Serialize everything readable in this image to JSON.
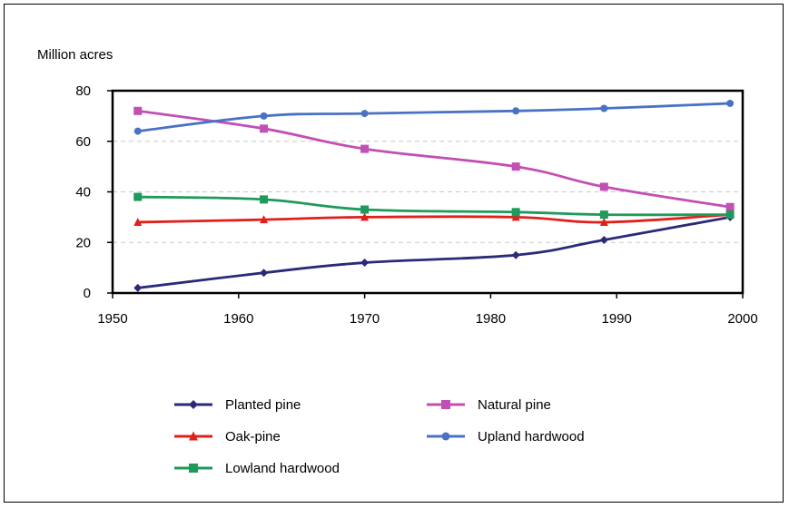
{
  "chart_data": {
    "type": "line",
    "title": "",
    "ylabel": "Million acres",
    "xlabel": "",
    "xlim": [
      1950,
      2000
    ],
    "ylim": [
      0,
      80
    ],
    "x_ticks": [
      1950,
      1960,
      1970,
      1980,
      1990,
      2000
    ],
    "y_ticks": [
      0,
      20,
      40,
      60,
      80
    ],
    "grid": "horizontal dashed",
    "legend_position": "bottom",
    "x": [
      1952,
      1962,
      1970,
      1982,
      1989,
      1999
    ],
    "series": [
      {
        "name": "Planted pine",
        "color": "#2b2a78",
        "marker": "diamond",
        "values": [
          2,
          8,
          12,
          15,
          21,
          30
        ]
      },
      {
        "name": "Natural pine",
        "color": "#c14fb4",
        "marker": "square",
        "values": [
          72,
          65,
          57,
          50,
          42,
          34
        ]
      },
      {
        "name": "Oak-pine",
        "color": "#e0201b",
        "marker": "triangle",
        "values": [
          28,
          29,
          30,
          30,
          28,
          31
        ]
      },
      {
        "name": "Upland hardwood",
        "color": "#4a72c4",
        "marker": "circle",
        "values": [
          64,
          70,
          71,
          72,
          73,
          75
        ]
      },
      {
        "name": "Lowland hardwood",
        "color": "#1e9a5a",
        "marker": "square",
        "values": [
          38,
          37,
          33,
          32,
          31,
          31
        ]
      }
    ]
  }
}
